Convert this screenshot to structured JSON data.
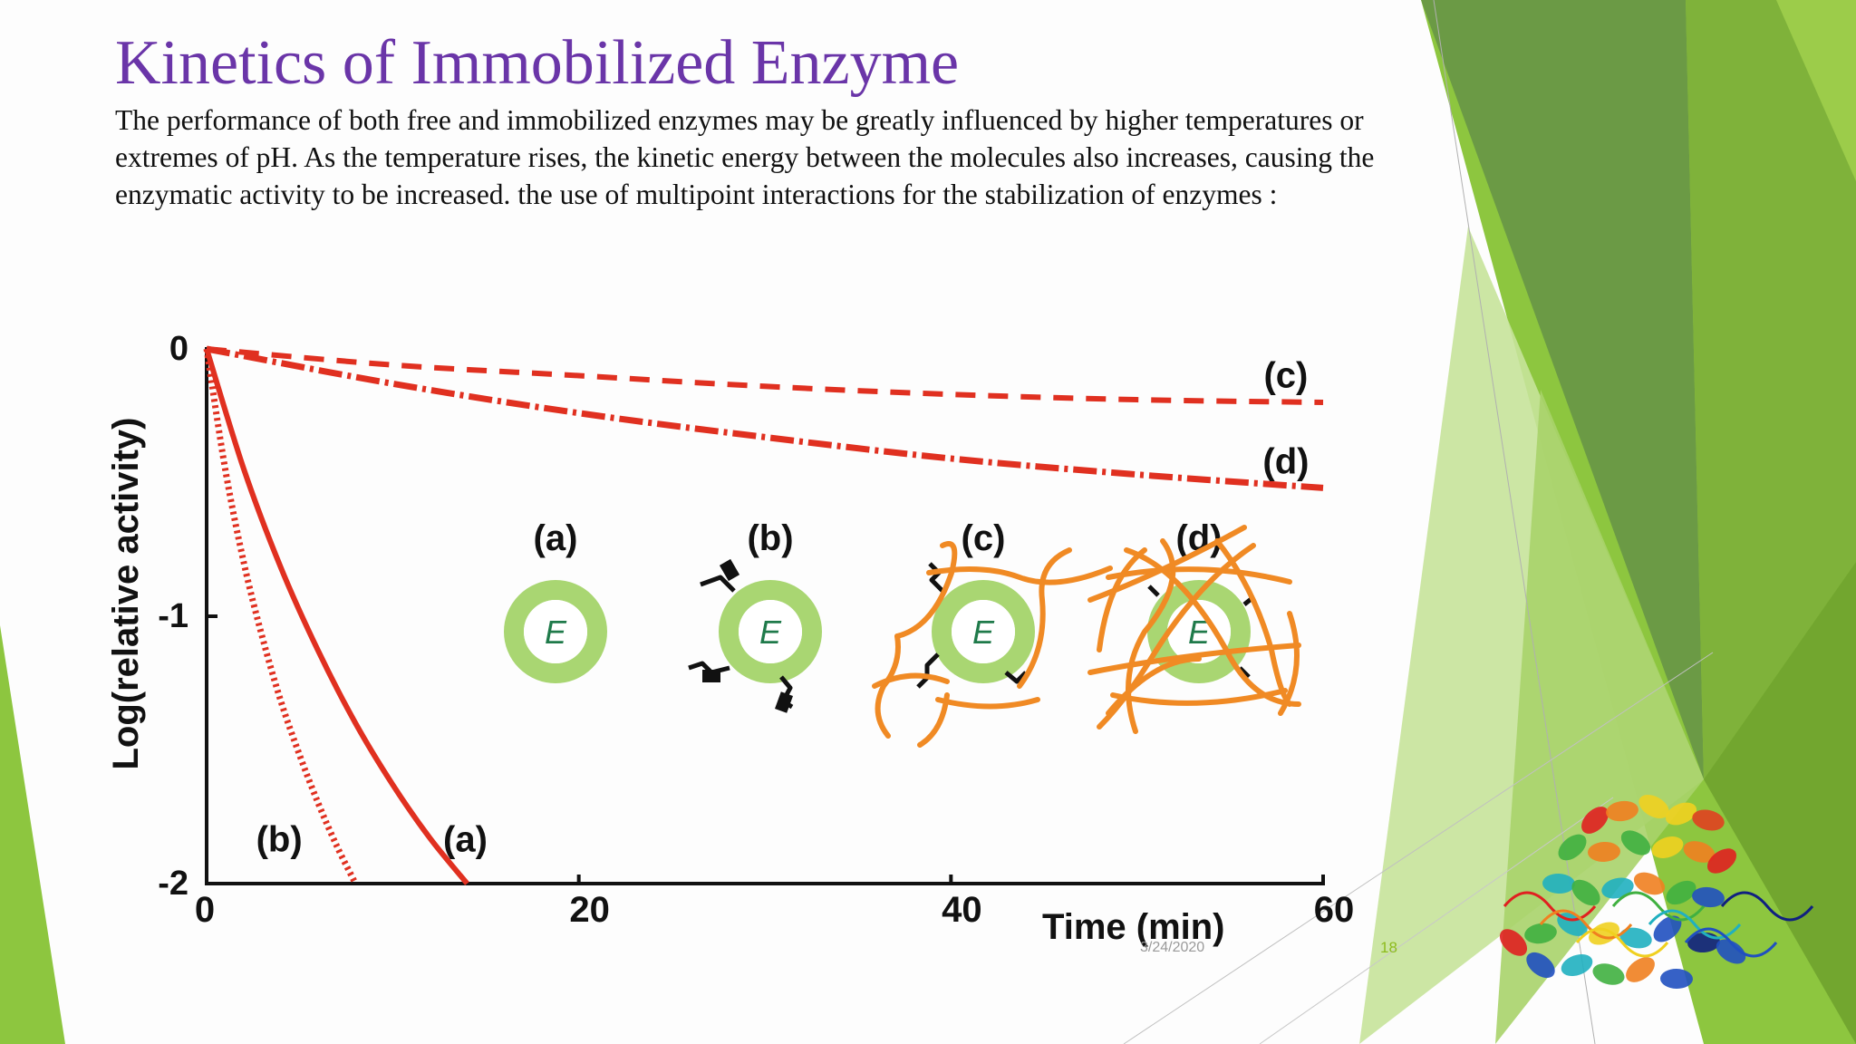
{
  "slide": {
    "title": "Kinetics of Immobilized Enzyme",
    "body": "The performance of both free and immobilized enzymes may be greatly influenced by higher temperatures or extremes of pH. As the temperature rises, the kinetic energy between the molecules also increases, causing the enzymatic activity to be increased. the use of multipoint interactions for the stabilization of enzymes :",
    "footer_date": "3/24/2020",
    "page_number": "18"
  },
  "theme": {
    "title_color": "#6a35a8",
    "accent_green": "#8dc63f",
    "dark_green": "#5a8f2a",
    "curve_color": "#e03020",
    "network_color": "#f08a24",
    "enzyme_ring_color": "#a9d672",
    "enzyme_label_color": "#1f7a4a"
  },
  "chart_data": {
    "type": "line",
    "xlabel": "Time (min)",
    "ylabel": "Log(relative activity)",
    "xlim": [
      0,
      60
    ],
    "ylim": [
      -2,
      0
    ],
    "x_ticks": [
      "0",
      "20",
      "40",
      "60"
    ],
    "y_ticks": [
      "0",
      "-1",
      "-2"
    ],
    "series": [
      {
        "name": "(a)",
        "style": "solid",
        "x": [
          0,
          2,
          4,
          6,
          8,
          10,
          12,
          14
        ],
        "y": [
          0,
          -0.45,
          -0.82,
          -1.13,
          -1.4,
          -1.63,
          -1.83,
          -2.0
        ]
      },
      {
        "name": "(b)",
        "style": "dotted",
        "x": [
          0,
          1,
          2,
          3,
          4,
          5,
          6,
          7,
          8
        ],
        "y": [
          0,
          -0.45,
          -0.8,
          -1.08,
          -1.32,
          -1.52,
          -1.7,
          -1.86,
          -2.0
        ]
      },
      {
        "name": "(c)",
        "style": "dashed",
        "x": [
          0,
          10,
          20,
          30,
          40,
          50,
          60
        ],
        "y": [
          0,
          -0.06,
          -0.1,
          -0.14,
          -0.17,
          -0.19,
          -0.2
        ]
      },
      {
        "name": "(d)",
        "style": "dash-dot",
        "x": [
          0,
          10,
          20,
          30,
          40,
          50,
          60
        ],
        "y": [
          0,
          -0.13,
          -0.24,
          -0.33,
          -0.41,
          -0.47,
          -0.52
        ]
      }
    ],
    "inset_diagrams": [
      {
        "label": "(a)",
        "enzyme_label": "E"
      },
      {
        "label": "(b)",
        "enzyme_label": "E"
      },
      {
        "label": "(c)",
        "enzyme_label": "E"
      },
      {
        "label": "(d)",
        "enzyme_label": "E"
      }
    ]
  }
}
